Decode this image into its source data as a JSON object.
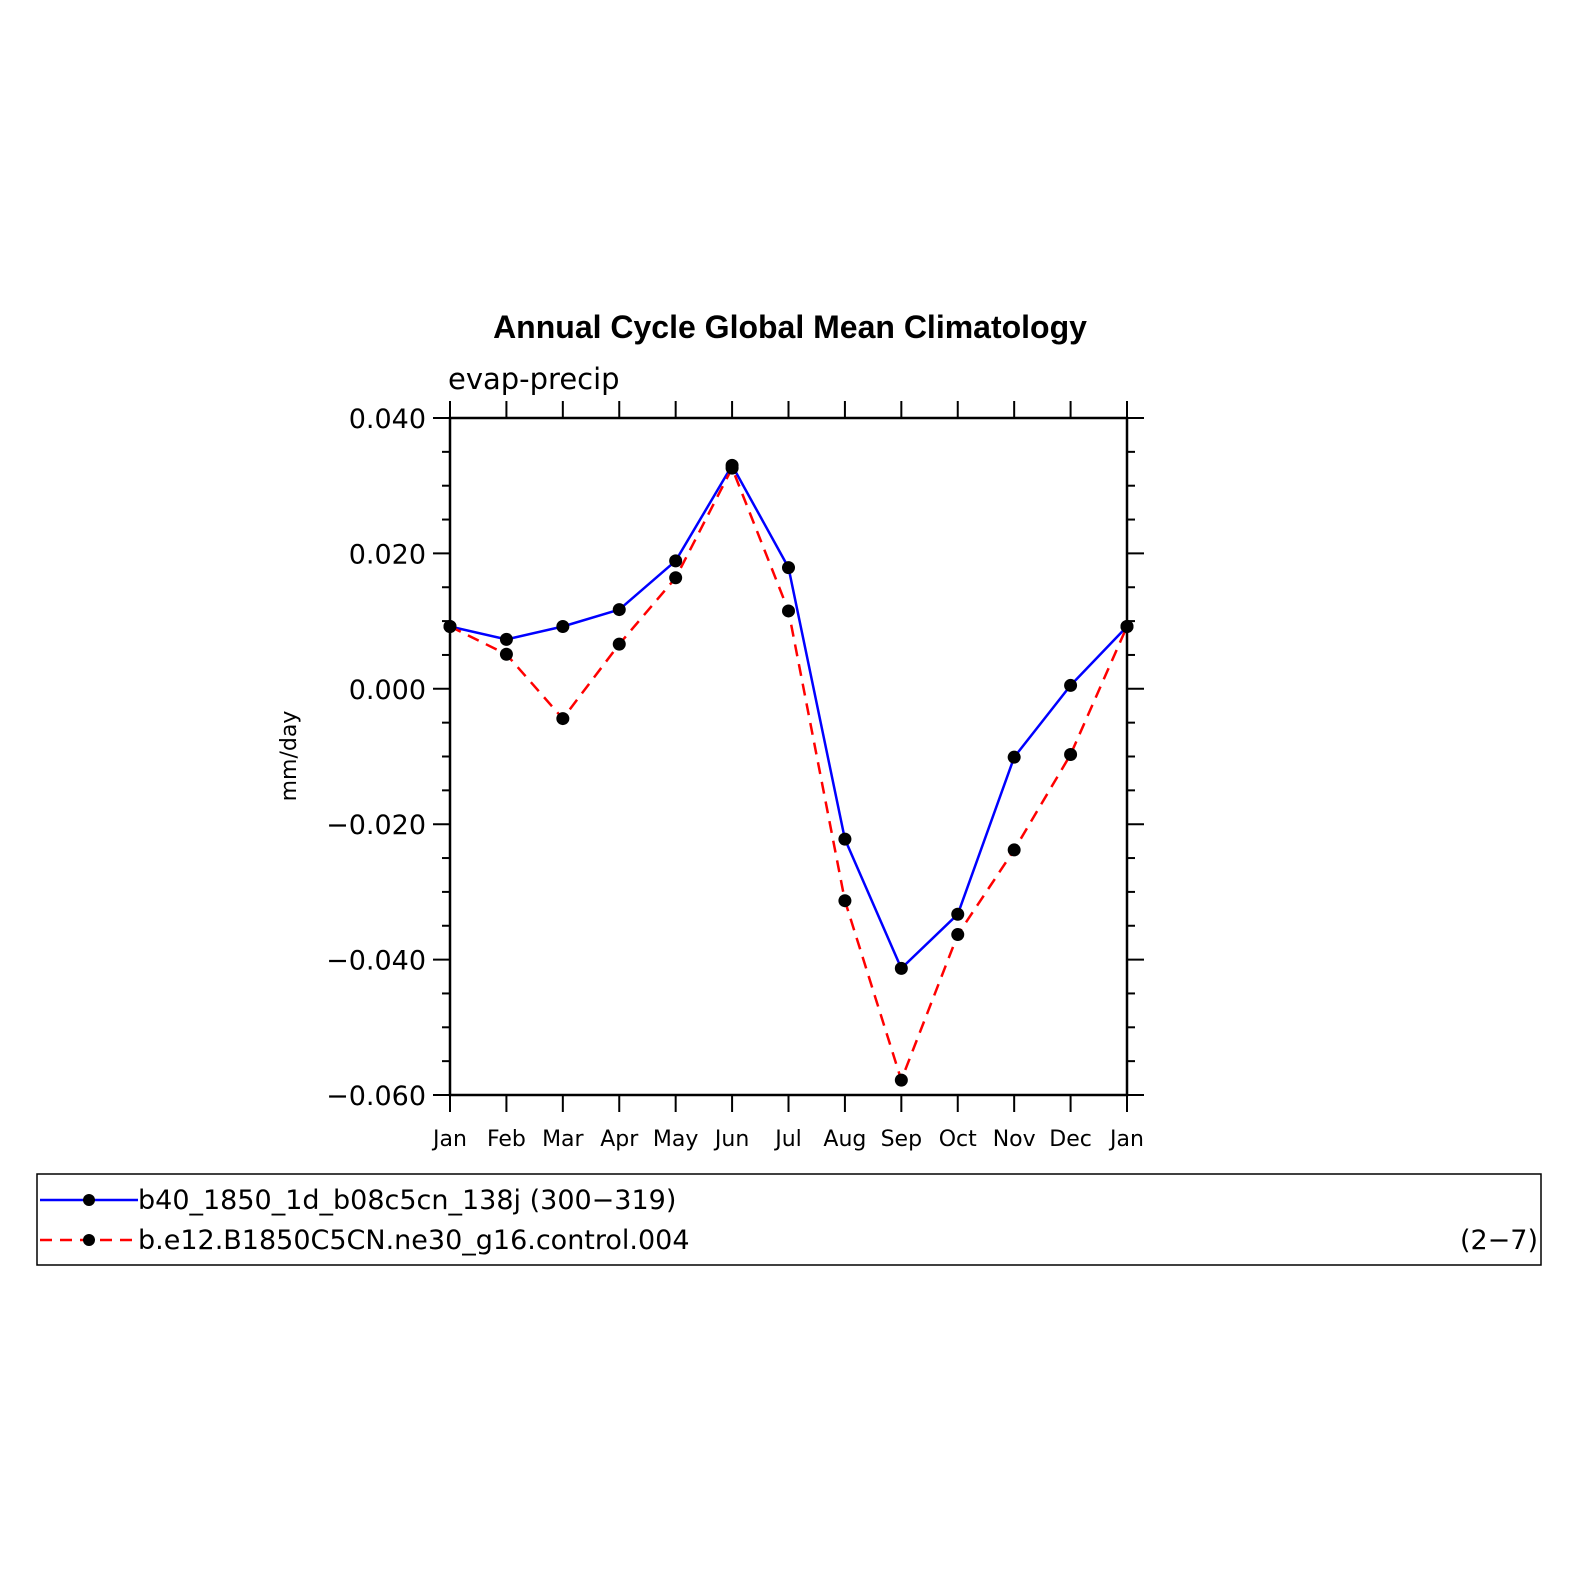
{
  "chart_data": {
    "type": "line",
    "title": "Annual Cycle Global Mean Climatology",
    "subtitle": "evap-precip",
    "xlabel": "",
    "ylabel": "mm/day",
    "categories": [
      "Jan",
      "Feb",
      "Mar",
      "Apr",
      "May",
      "Jun",
      "Jul",
      "Aug",
      "Sep",
      "Oct",
      "Nov",
      "Dec",
      "Jan"
    ],
    "ylim": [
      -0.06,
      0.04
    ],
    "yticks": [
      0.04,
      0.02,
      0.0,
      -0.02,
      -0.04,
      -0.06
    ],
    "ytick_labels": [
      "0.040",
      "0.020",
      "0.000",
      "−0.020",
      "−0.040",
      "−0.060"
    ],
    "grid": false,
    "series": [
      {
        "name": "b40_1850_1d_b08c5cn_138j (300−319)",
        "color": "#0000ff",
        "dash": "solid",
        "values": [
          0.0092,
          0.0073,
          0.0092,
          0.0117,
          0.0189,
          0.033,
          0.0179,
          -0.0222,
          -0.0413,
          -0.0333,
          -0.0101,
          0.0005,
          0.0092
        ]
      },
      {
        "name": "b.e12.B1850C5CN.ne30_g16.control.004",
        "color": "#ff0000",
        "dash": "dashed",
        "values": [
          0.0092,
          0.0051,
          -0.0044,
          0.0066,
          0.0164,
          0.0326,
          0.0115,
          -0.0313,
          -0.0578,
          -0.0363,
          -0.0238,
          -0.0097,
          0.0092
        ]
      }
    ],
    "legend": {
      "placement": "bottom",
      "corner_note": "(2−7)"
    }
  }
}
